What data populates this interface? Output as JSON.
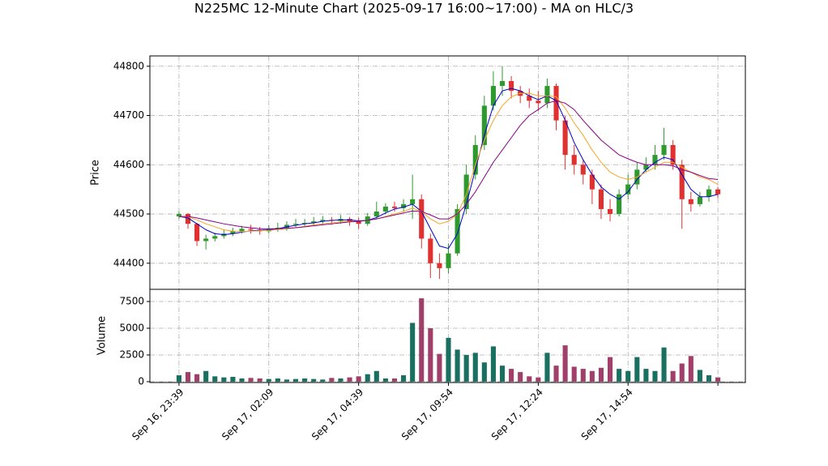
{
  "chart_data": {
    "type": "candlestick",
    "title": "N225MC 12-Minute Chart (2025-09-17 16:00~17:00) - MA on HLC/3",
    "ylabel": "Price",
    "volume_label": "Volume",
    "categories": [
      "Sep 16, 23:39",
      null,
      null,
      null,
      null,
      null,
      null,
      null,
      null,
      null,
      "Sep 17, 02:09",
      null,
      null,
      null,
      null,
      null,
      null,
      null,
      null,
      null,
      "Sep 17, 04:39",
      null,
      null,
      null,
      null,
      null,
      null,
      null,
      null,
      null,
      "Sep 17, 09:54",
      null,
      null,
      null,
      null,
      null,
      null,
      null,
      null,
      null,
      "Sep 17, 12:24",
      null,
      null,
      null,
      null,
      null,
      null,
      null,
      null,
      null,
      "Sep 17, 14:54",
      null,
      null,
      null,
      null,
      null,
      null,
      null,
      null,
      null,
      null
    ],
    "xlim": [
      -3.24,
      63.06
    ],
    "xticks": [
      0,
      10,
      20,
      30,
      40,
      50,
      60
    ],
    "open": [
      44495,
      44500,
      44480,
      44445,
      44450,
      44455,
      44460,
      44465,
      44470,
      44468,
      44465,
      44470,
      44472,
      44478,
      44480,
      44482,
      44485,
      44488,
      44486,
      44490,
      44485,
      44480,
      44495,
      44505,
      44515,
      44512,
      44520,
      44530,
      44450,
      44400,
      44390,
      44420,
      44510,
      44580,
      44640,
      44720,
      44760,
      44770,
      44750,
      44740,
      44730,
      44725,
      44760,
      44690,
      44620,
      44600,
      44580,
      44550,
      44510,
      44500,
      44540,
      44560,
      44590,
      44600,
      44620,
      44640,
      44600,
      44530,
      44520,
      44535,
      44550
    ],
    "high": [
      44505,
      44502,
      44482,
      44458,
      44462,
      44468,
      44472,
      44476,
      44478,
      44474,
      44478,
      44482,
      44485,
      44490,
      44490,
      44494,
      44496,
      44494,
      44498,
      44494,
      44492,
      44502,
      44525,
      44522,
      44525,
      44530,
      44580,
      44540,
      44460,
      44420,
      44440,
      44520,
      44600,
      44660,
      44740,
      44790,
      44800,
      44780,
      44760,
      44755,
      44750,
      44775,
      44765,
      44700,
      44640,
      44610,
      44590,
      44560,
      44530,
      44550,
      44580,
      44605,
      44615,
      44640,
      44675,
      44650,
      44610,
      44545,
      44545,
      44558,
      44555
    ],
    "low": [
      44490,
      44470,
      44435,
      44428,
      44444,
      44450,
      44455,
      44460,
      44460,
      44458,
      44460,
      44464,
      44466,
      44472,
      44474,
      44476,
      44478,
      44478,
      44480,
      44476,
      44470,
      44476,
      44490,
      44500,
      44505,
      44505,
      44490,
      44430,
      44370,
      44368,
      44380,
      44415,
      44500,
      44570,
      44630,
      44710,
      44740,
      44735,
      44725,
      44715,
      44710,
      44715,
      44670,
      44590,
      44580,
      44560,
      44520,
      44490,
      44485,
      44495,
      44530,
      44550,
      44585,
      44590,
      44610,
      44590,
      44470,
      44505,
      44515,
      44525,
      44532
    ],
    "close": [
      44500,
      44480,
      44445,
      44450,
      44455,
      44460,
      44465,
      44470,
      44468,
      44465,
      44470,
      44472,
      44478,
      44480,
      44482,
      44485,
      44488,
      44486,
      44490,
      44485,
      44480,
      44495,
      44505,
      44515,
      44512,
      44520,
      44530,
      44450,
      44400,
      44390,
      44420,
      44510,
      44580,
      44640,
      44720,
      44760,
      44770,
      44750,
      44740,
      44730,
      44725,
      44760,
      44690,
      44620,
      44600,
      44580,
      44550,
      44510,
      44500,
      44540,
      44560,
      44590,
      44600,
      44620,
      44640,
      44600,
      44530,
      44520,
      44535,
      44550,
      44540
    ],
    "volume": [
      600,
      900,
      700,
      1000,
      500,
      400,
      450,
      300,
      350,
      300,
      250,
      300,
      200,
      250,
      300,
      250,
      200,
      350,
      300,
      400,
      500,
      700,
      1000,
      300,
      300,
      600,
      5500,
      7800,
      5000,
      2600,
      4100,
      3000,
      2500,
      2700,
      1800,
      3300,
      1500,
      1200,
      900,
      500,
      400,
      2700,
      1500,
      3400,
      1400,
      1200,
      1000,
      1300,
      2300,
      1200,
      1000,
      2300,
      1200,
      1000,
      3200,
      1000,
      1700,
      2400,
      1100,
      600,
      400
    ],
    "ma": [
      {
        "color": "#0000cc",
        "values": [
          44495,
          44492,
          44480,
          44468,
          44460,
          44458,
          44460,
          44463,
          44466,
          44467,
          44468,
          44470,
          44474,
          44477,
          44480,
          44482,
          44485,
          44487,
          44488,
          44488,
          44486,
          44487,
          44493,
          44502,
          44510,
          44514,
          44520,
          44505,
          44470,
          44435,
          44430,
          44460,
          44520,
          44590,
          44660,
          44720,
          44750,
          44755,
          44750,
          44740,
          44732,
          44740,
          44730,
          44690,
          44645,
          44610,
          44580,
          44555,
          44540,
          44530,
          44545,
          44570,
          44590,
          44605,
          44615,
          44610,
          44580,
          44550,
          44535,
          44535,
          44540
        ]
      },
      {
        "color": "#f5a623",
        "values": [
          44495,
          44494,
          44488,
          44480,
          44474,
          44468,
          44465,
          44464,
          44465,
          44466,
          44467,
          44468,
          44470,
          44472,
          44475,
          44478,
          44480,
          44482,
          44484,
          44485,
          44485,
          44487,
          44490,
          44495,
          44500,
          44505,
          44512,
          44505,
          44490,
          44480,
          44485,
          44500,
          44540,
          44600,
          44650,
          44690,
          44720,
          44738,
          44745,
          44745,
          44740,
          44740,
          44738,
          44715,
          44685,
          44660,
          44630,
          44605,
          44585,
          44575,
          44570,
          44575,
          44585,
          44595,
          44605,
          44605,
          44595,
          44585,
          44575,
          44570,
          44560
        ]
      },
      {
        "color": "#8b008b",
        "values": [
          44495,
          44495,
          44492,
          44488,
          44484,
          44480,
          44477,
          44474,
          44472,
          44470,
          44470,
          44470,
          44471,
          44472,
          44474,
          44476,
          44478,
          44480,
          44482,
          44484,
          44485,
          44487,
          44490,
          44494,
          44498,
          44502,
          44506,
          44505,
          44498,
          44490,
          44490,
          44500,
          44520,
          44545,
          44575,
          44605,
          44630,
          44655,
          44680,
          44700,
          44712,
          44725,
          44730,
          44725,
          44712,
          44690,
          44670,
          44650,
          44635,
          44620,
          44612,
          44605,
          44600,
          44600,
          44600,
          44598,
          44590,
          44585,
          44578,
          44572,
          44570
        ]
      }
    ],
    "up_color": "#2e9a2e",
    "down_color": "#e03030",
    "volume_up_color": "#1a7060",
    "volume_down_color": "#a0406a",
    "ylim": [
      44347,
      44821
    ],
    "yticks": [
      44400,
      44500,
      44600,
      44700,
      44800
    ],
    "volume_ylim": [
      -80,
      8640
    ],
    "volume_yticks": [
      0,
      2500,
      5000,
      7500
    ],
    "grid": true
  }
}
